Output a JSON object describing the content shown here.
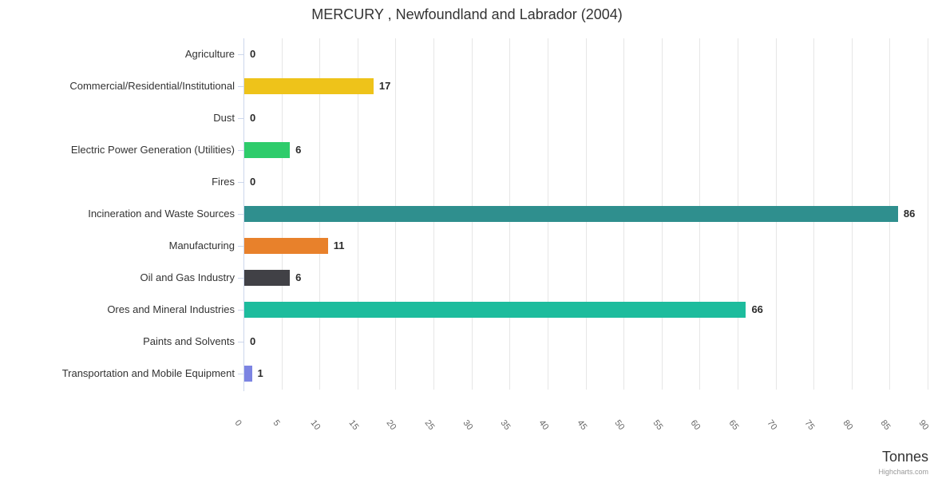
{
  "chart_data": {
    "type": "bar",
    "orientation": "horizontal",
    "title": "MERCURY , Newfoundland and Labrador (2004)",
    "categories": [
      "Agriculture",
      "Commercial/Residential/Institutional",
      "Dust",
      "Electric Power Generation (Utilities)",
      "Fires",
      "Incineration and Waste Sources",
      "Manufacturing",
      "Oil and Gas Industry",
      "Ores and Mineral Industries",
      "Paints and Solvents",
      "Transportation and Mobile Equipment"
    ],
    "values": [
      0,
      17,
      0,
      6,
      0,
      86,
      11,
      6,
      66,
      0,
      1
    ],
    "bar_colors": [
      null,
      "#eec31a",
      null,
      "#2ecc6b",
      null,
      "#2f8f8e",
      "#e8812b",
      "#414146",
      "#1dbc9d",
      null,
      "#7c84e2"
    ],
    "data_labels_shown": true,
    "xlabel": "Tonnes",
    "value_axis": {
      "min": 0,
      "max": 90,
      "tick_interval": 5,
      "tick_labels": [
        "0",
        "5",
        "10",
        "15",
        "20",
        "25",
        "30",
        "35",
        "40",
        "45",
        "50",
        "55",
        "60",
        "65",
        "70",
        "75",
        "80",
        "85",
        "90"
      ]
    },
    "grid": true,
    "legend": false
  },
  "credits": "Highcharts.com",
  "colors": {
    "axis_line": "#ccd6eb",
    "grid_line": "#e6e6e6",
    "category_label": "#333333",
    "tick_label": "#666666",
    "data_label": "#2b2b2b",
    "title": "#333333"
  }
}
